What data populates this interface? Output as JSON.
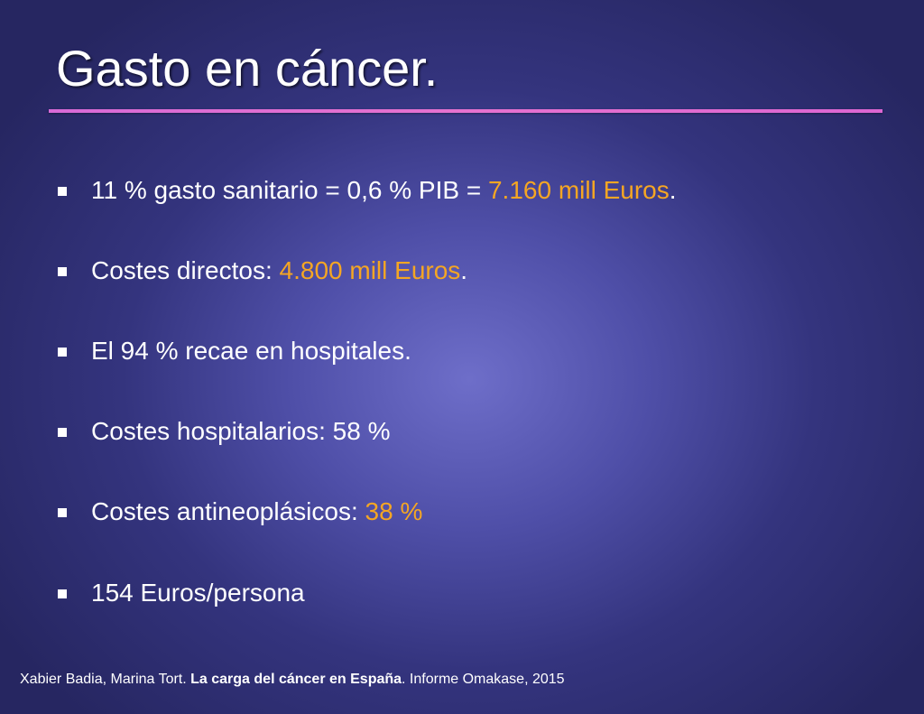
{
  "slide": {
    "title": "Gasto en cáncer.",
    "accent_color": "#f5a623",
    "rule_color": "#e06ad2"
  },
  "bullets": [
    {
      "pre": "11 % gasto sanitario = 0,6 % PIB = ",
      "highlight": "7.160 mill Euros",
      "post": "."
    },
    {
      "pre": "Costes directos: ",
      "highlight": "4.800 mill Euros",
      "post": "."
    },
    {
      "pre": "El 94 % recae en hospitales.",
      "highlight": "",
      "post": ""
    },
    {
      "pre": "Costes hospitalarios: 58 %",
      "highlight": "",
      "post": ""
    },
    {
      "pre": "Costes antineoplásicos: ",
      "highlight": "38 %",
      "post": ""
    },
    {
      "pre": "154 Euros/persona",
      "highlight": "",
      "post": ""
    }
  ],
  "citation": {
    "authors": "Xabier Badia, Marina Tort. ",
    "work": "La carga del cáncer en España",
    "rest": ". Informe Omakase, 2015"
  }
}
